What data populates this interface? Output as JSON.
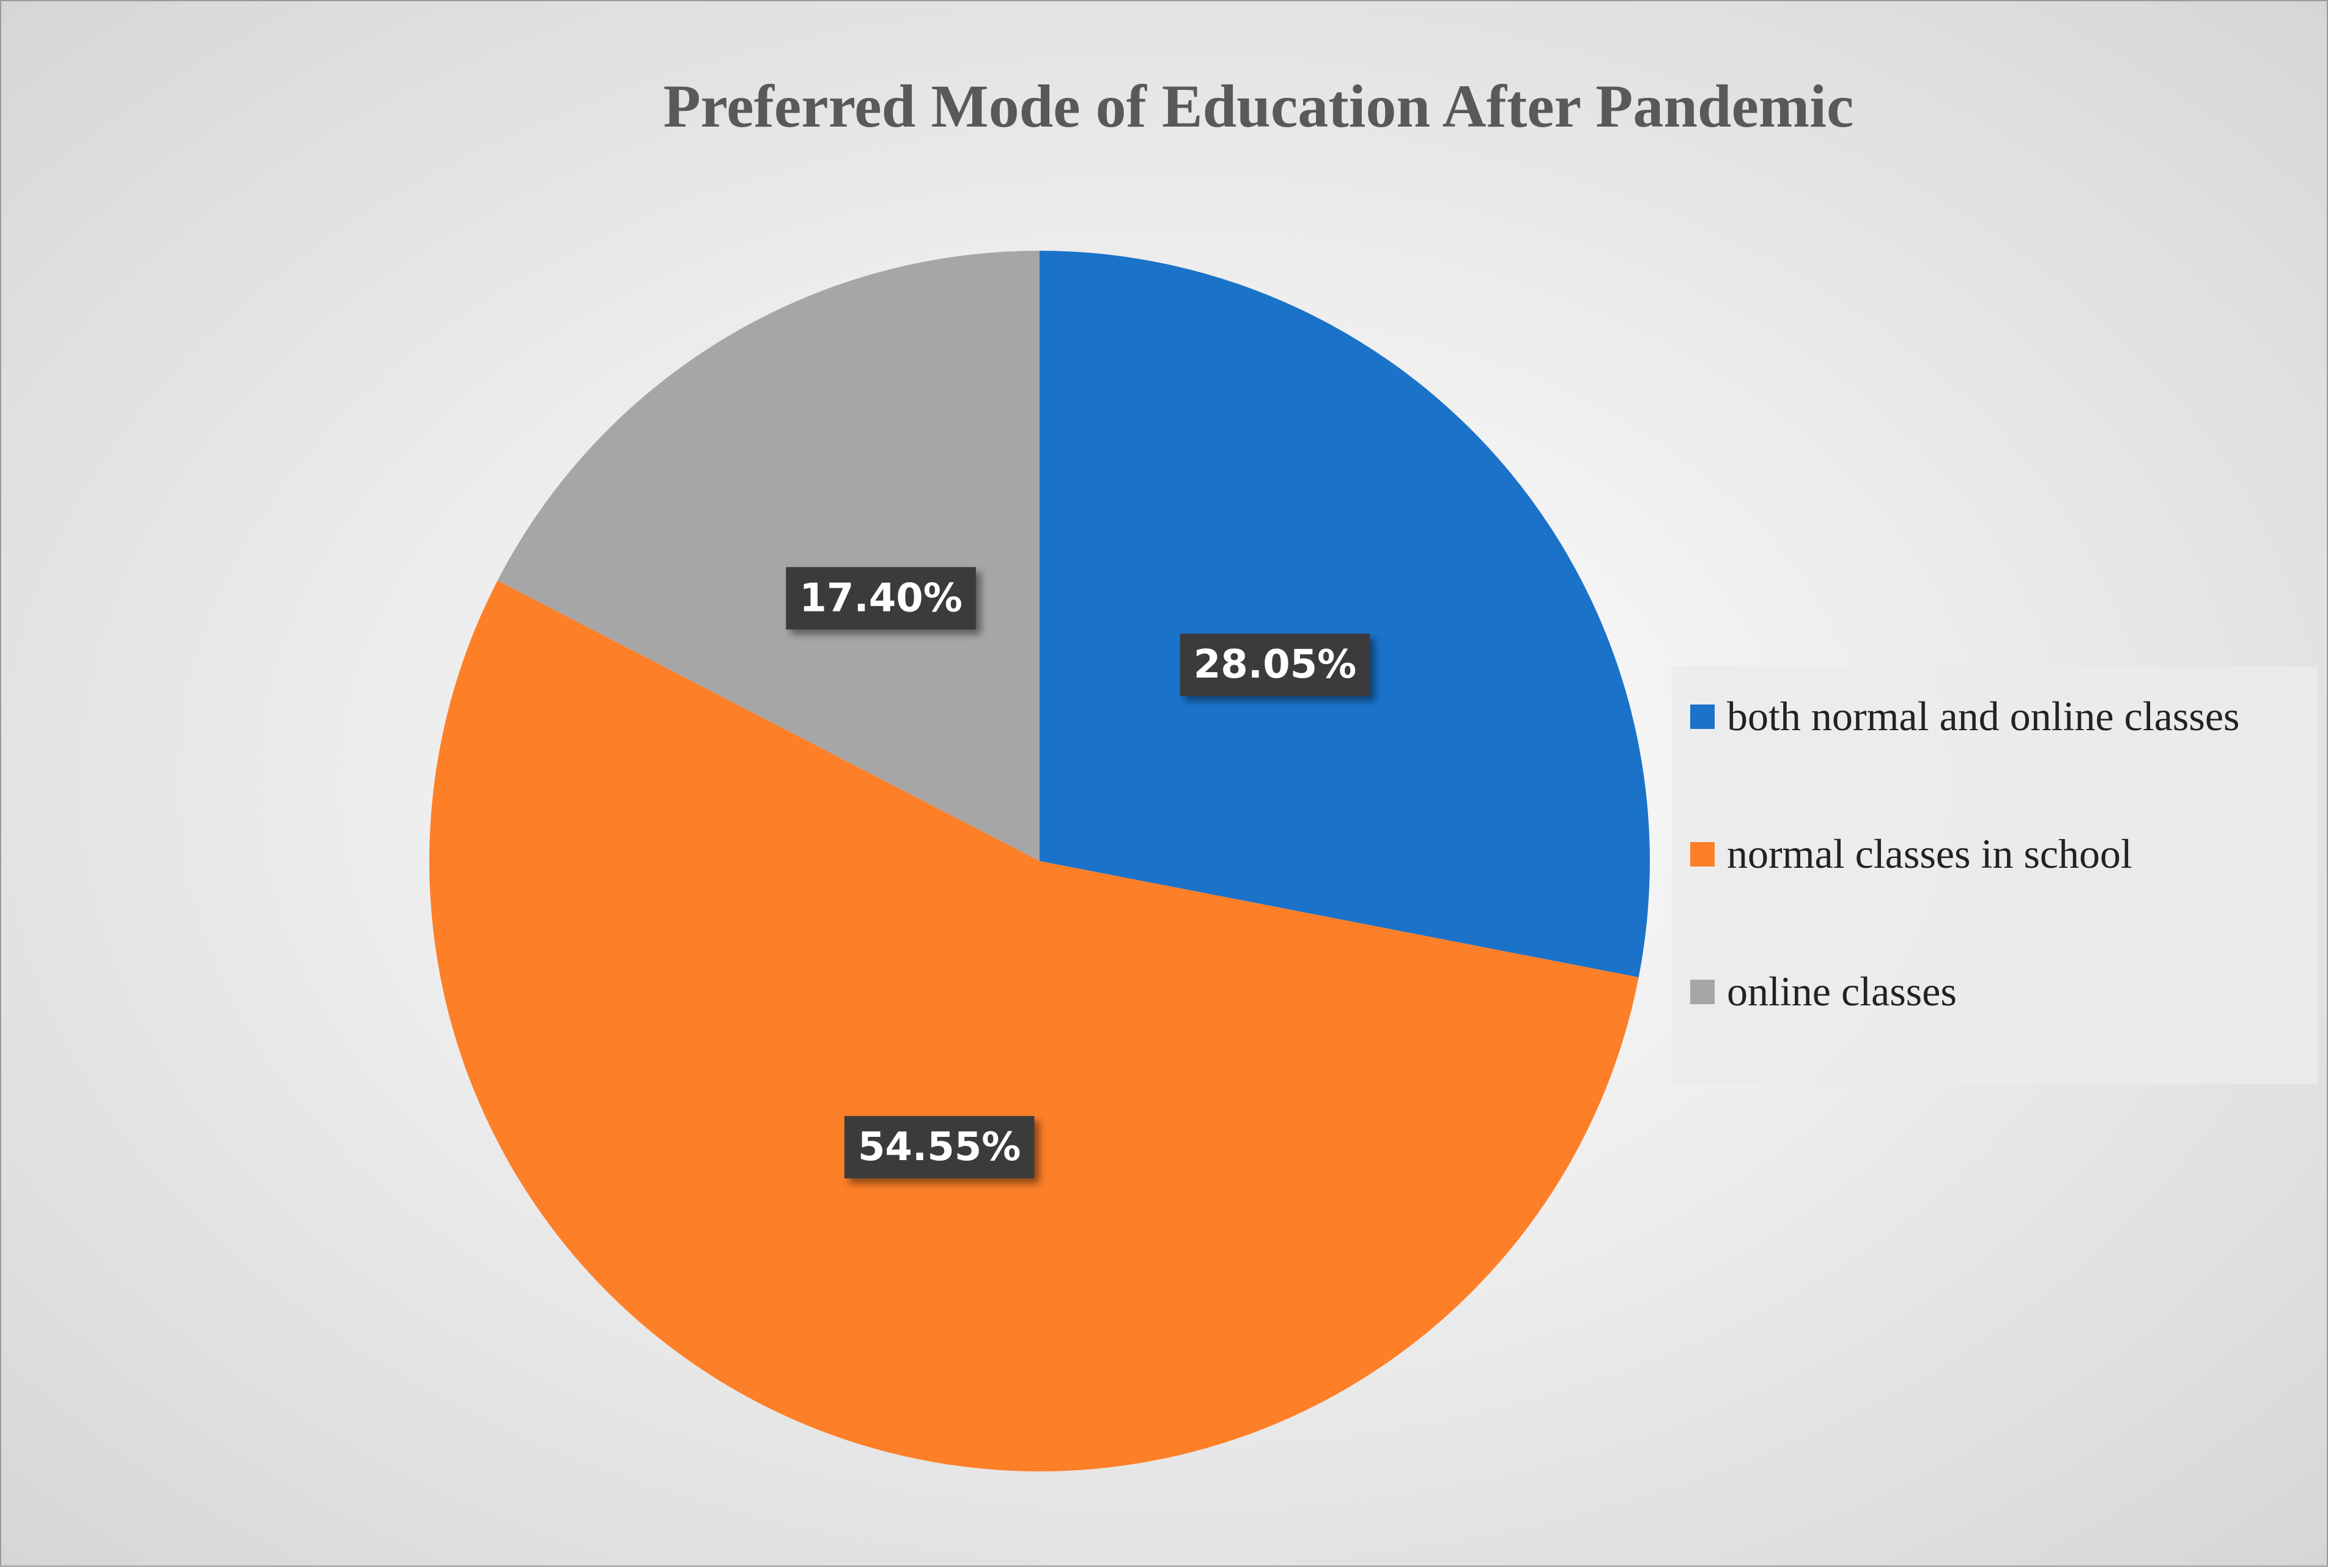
{
  "chart_data": {
    "type": "pie",
    "title": "Preferred Mode of Education After Pandemic",
    "categories": [
      "both normal and online classes",
      "normal classes in school",
      "online classes"
    ],
    "values": [
      28.05,
      54.55,
      17.4
    ],
    "value_labels": [
      "28.05%",
      "54.55%",
      "17.40%"
    ],
    "colors": [
      "#1a73c9",
      "#fd7f28",
      "#a6a6a6"
    ],
    "legend": "right"
  }
}
